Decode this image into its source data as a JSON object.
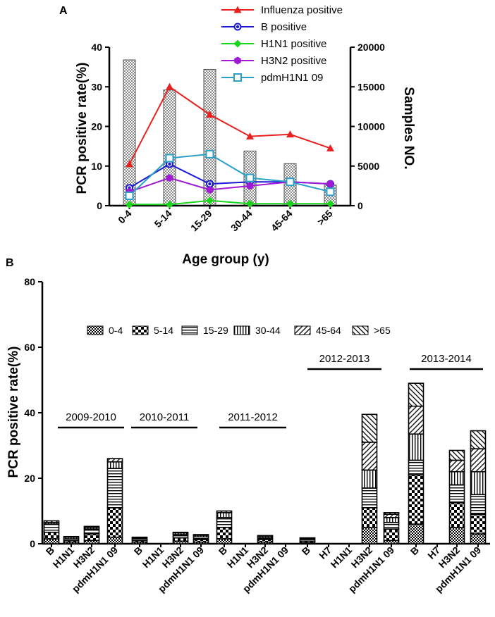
{
  "panel_a_label": "A",
  "panel_b_label": "B",
  "colors": {
    "influenza": "#e8201f",
    "b": "#1a1ad6",
    "h1n1": "#1ad61a",
    "h3n2": "#a01ad6",
    "pdm": "#2aa0c8",
    "bars_a": "#8a8a8a"
  },
  "chart_data": [
    {
      "type": "bar+line",
      "panel": "A",
      "categories": [
        "0-4",
        "5-14",
        "15-29",
        "30-44",
        "45-64",
        ">65"
      ],
      "xlabel": "Age group (y)",
      "ylabel": "PCR positive rate(%)",
      "y2label": "Samples NO.",
      "ylim": [
        0,
        40
      ],
      "y2lim": [
        0,
        20000
      ],
      "yticks": [
        "0",
        "10",
        "20",
        "30",
        "40"
      ],
      "y2ticks": [
        "0",
        "5000",
        "10000",
        "15000",
        "20000"
      ],
      "bars": {
        "name": "Samples NO.",
        "values": [
          18400,
          14600,
          17200,
          6900,
          5300,
          2600
        ]
      },
      "series": [
        {
          "name": "Influenza positive",
          "key": "influenza",
          "marker": "triangle",
          "values": [
            10.5,
            30,
            23,
            17.5,
            18,
            14.5
          ]
        },
        {
          "name": "B positive",
          "key": "b",
          "marker": "circle",
          "values": [
            4.5,
            10.5,
            5.5,
            6,
            6,
            5.5
          ]
        },
        {
          "name": "H1N1 positive",
          "key": "h1n1",
          "marker": "diamond",
          "values": [
            0.3,
            0.3,
            1.3,
            0.5,
            0.5,
            0.5
          ]
        },
        {
          "name": "H3N2 positive",
          "key": "h3n2",
          "marker": "hexagon",
          "values": [
            3.5,
            7,
            4,
            5,
            6,
            5.5
          ]
        },
        {
          "name": "pdmH1N1 09",
          "key": "pdm",
          "marker": "square",
          "values": [
            2.5,
            12,
            13,
            7,
            6,
            3.5
          ]
        }
      ]
    },
    {
      "type": "stacked-bar",
      "panel": "B",
      "ylabel": "PCR positive rate(%)",
      "ylim": [
        0,
        80
      ],
      "yticks": [
        "0",
        "20",
        "40",
        "60",
        "80"
      ],
      "stack_legend": [
        "0-4",
        "5-14",
        "15-29",
        "30-44",
        "45-64",
        ">65"
      ],
      "periods": [
        {
          "label": "2009-2010",
          "categories": [
            "B",
            "H1N1",
            "H3N2",
            "pdmH1N1 09"
          ],
          "stacks": [
            [
              1.5,
              2,
              2.5,
              0.5,
              0.5,
              0
            ],
            [
              0.5,
              0.5,
              0.5,
              0.5,
              0.2,
              0
            ],
            [
              1,
              2,
              1.5,
              0.5,
              0.3,
              0
            ],
            [
              2,
              9,
              12,
              2,
              1,
              0
            ]
          ]
        },
        {
          "label": "2010-2011",
          "categories": [
            "B",
            "H1N1",
            "H3N2",
            "pdmH1N1 09"
          ],
          "stacks": [
            [
              0.5,
              0.5,
              0.5,
              0.3,
              0.2,
              0
            ],
            [
              0,
              0,
              0,
              0,
              0,
              0
            ],
            [
              0.8,
              1,
              1,
              0.5,
              0.2,
              0
            ],
            [
              0.5,
              0.8,
              0.8,
              0.5,
              0.2,
              0
            ]
          ]
        },
        {
          "label": "2011-2012",
          "categories": [
            "B",
            "H1N1",
            "H3N2",
            "pdmH1N1 09"
          ],
          "stacks": [
            [
              1.5,
              3.5,
              3,
              1.5,
              0.5,
              0
            ],
            [
              0,
              0,
              0,
              0,
              0,
              0
            ],
            [
              0.5,
              0.8,
              0.5,
              0.5,
              0.2,
              0
            ],
            [
              0,
              0,
              0,
              0,
              0,
              0
            ]
          ]
        },
        {
          "label": "2012-2013",
          "categories": [
            "B",
            "H7",
            "H1N1",
            "H3N2",
            "pdmH1N1 09"
          ],
          "stacks": [
            [
              0.3,
              0.5,
              0.5,
              0.3,
              0.2,
              0
            ],
            [
              0,
              0,
              0,
              0,
              0,
              0
            ],
            [
              0,
              0,
              0,
              0,
              0,
              0
            ],
            [
              5,
              6,
              6,
              5.5,
              8.5,
              8.5
            ],
            [
              1,
              3.5,
              2,
              1.5,
              1,
              0.5
            ]
          ]
        },
        {
          "label": "2013-2014",
          "categories": [
            "B",
            "H7",
            "H3N2",
            "pdmH1N1 09"
          ],
          "stacks": [
            [
              6,
              15,
              4.5,
              8,
              8.5,
              7
            ],
            [
              0,
              0,
              0,
              0,
              0,
              0
            ],
            [
              5,
              7.5,
              5.5,
              4,
              3.5,
              3
            ],
            [
              3,
              6,
              6,
              7,
              7,
              5.5
            ]
          ]
        }
      ]
    }
  ]
}
